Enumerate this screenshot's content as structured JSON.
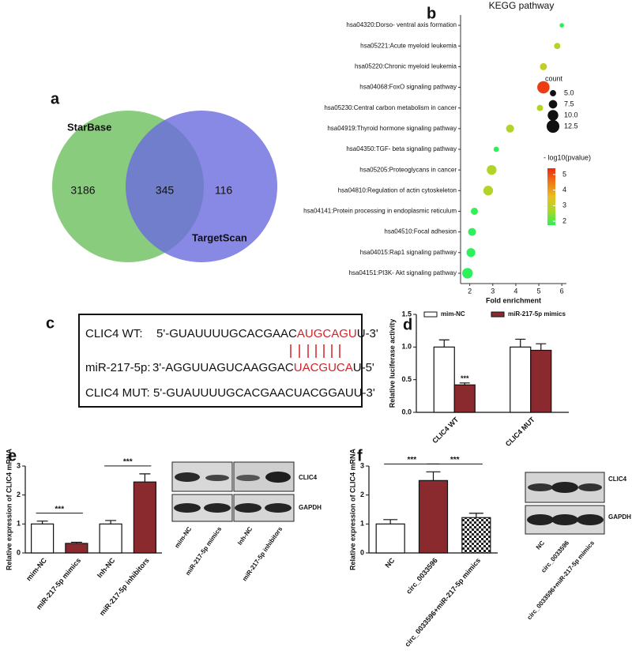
{
  "panel_labels": [
    "a",
    "b",
    "c",
    "d",
    "e",
    "f"
  ],
  "chart_data": [
    {
      "type": "venn",
      "sets": [
        {
          "name": "StarBase",
          "color": "#6dbf5e"
        },
        {
          "name": "TargetScan",
          "color": "#6a6ade"
        }
      ],
      "values": [
        3186,
        345,
        116
      ]
    },
    {
      "type": "bubble",
      "title": "KEGG pathway",
      "x_label": "Fold enrichment",
      "categories": [
        "hsa04320:Dorso- ventral axis formation",
        "hsa05221:Acute myeloid leukemia",
        "hsa05220:Chronic myeloid leukemia",
        "hsa04068:FoxO signaling pathway",
        "hsa05230:Central carbon metabolism in cancer",
        "hsa04919:Thyroid hormone signaling pathway",
        "hsa04350:TGF- beta signaling pathway",
        "hsa05205:Proteoglycans in cancer",
        "hsa04810:Regulation of actin cytoskeleton",
        "hsa04141:Protein processing in endoplasmic reticulum",
        "hsa04510:Focal adhesion",
        "hsa04015:Rap1 signaling pathway",
        "hsa04151:PI3K- Akt signaling pathway"
      ],
      "values": [
        6.0,
        5.8,
        5.2,
        5.2,
        5.05,
        3.75,
        3.15,
        2.95,
        2.8,
        2.2,
        2.1,
        2.05,
        1.9
      ],
      "count": [
        3,
        5,
        6,
        12,
        5,
        7,
        4,
        9,
        9,
        6,
        7,
        8,
        10
      ],
      "neg_log10_pvalue": [
        1.5,
        2.8,
        3.0,
        5.2,
        2.8,
        2.8,
        1.6,
        2.8,
        2.8,
        1.8,
        1.5,
        1.6,
        1.4
      ],
      "xlim": [
        1.6,
        6.2
      ],
      "xticks": [
        2,
        3,
        4,
        5,
        6
      ],
      "size_legend": {
        "title": "count",
        "ticks": [
          {
            "value": 5,
            "label": "5.0"
          },
          {
            "value": 7.5,
            "label": "7.5"
          },
          {
            "value": 10,
            "label": "10.0"
          },
          {
            "value": 12.5,
            "label": "12.5"
          }
        ]
      },
      "color_legend": {
        "title": "- log10(pvalue)",
        "range": [
          1.75,
          5.4
        ],
        "ticks": [
          2,
          3,
          4,
          5
        ],
        "colors": [
          "#2ef05a",
          "#a8d82a",
          "#e8c020",
          "#f07a18",
          "#ee2a10"
        ]
      }
    },
    {
      "type": "bar",
      "y_label": "Relative luciferase activity",
      "categories": [
        "CLIC4 WT",
        "CLIC4 MUT"
      ],
      "series": [
        {
          "name": "mim-NC",
          "color": "#ffffff",
          "values": [
            1.0,
            1.0
          ],
          "errors": [
            0.11,
            0.12
          ]
        },
        {
          "name": "miR-217-5p mimics",
          "color": "#8b2a2e",
          "values": [
            0.42,
            0.95
          ],
          "errors": [
            0.03,
            0.1
          ]
        }
      ],
      "ylim": [
        0,
        1.5
      ],
      "yticks": [
        {
          "value": 0,
          "label": "0.0"
        },
        {
          "value": 0.5,
          "label": "0.5"
        },
        {
          "value": 1,
          "label": "1.0"
        },
        {
          "value": 1.5,
          "label": "1.5"
        }
      ],
      "annotations": [
        {
          "text": "***",
          "category": 0,
          "series": 1
        }
      ]
    },
    {
      "type": "bar",
      "y_label": "Relative expression of CLIC4 mRNA",
      "categories": [
        "mim-NC",
        "miR-217-5p mimics",
        "Inh-NC",
        "miR-217-5p inhibitors"
      ],
      "values": [
        1.0,
        0.33,
        1.0,
        2.45
      ],
      "errors": [
        0.1,
        0.04,
        0.12,
        0.28
      ],
      "colors": [
        "#ffffff",
        "#8b2a2e",
        "#ffffff",
        "#8b2a2e"
      ],
      "ylim": [
        0,
        3
      ],
      "yticks": [
        0,
        1,
        2,
        3
      ],
      "annotations": [
        {
          "text": "***",
          "between": [
            0,
            1
          ]
        },
        {
          "text": "***",
          "between": [
            2,
            3
          ]
        }
      ]
    },
    {
      "type": "bar",
      "y_label": "Relative expression of CLIC4 mRNA",
      "categories": [
        "NC",
        "circ_0033596",
        "circ_0033596+miR-217-5p mimics"
      ],
      "values": [
        1.0,
        2.5,
        1.22
      ],
      "errors": [
        0.15,
        0.3,
        0.15
      ],
      "colors": [
        "#ffffff",
        "#8b2a2e",
        "checkered"
      ],
      "ylim": [
        0,
        3
      ],
      "yticks": [
        0,
        1,
        2,
        3
      ],
      "annotations": [
        {
          "text": "***",
          "between": [
            0,
            1
          ]
        },
        {
          "text": "***",
          "between": [
            1,
            2
          ]
        }
      ]
    }
  ],
  "sequence": {
    "rows": [
      {
        "label": "CLIC4 WT:",
        "parts": [
          "5'-GUAUUUUGCACGAAC",
          "AUGCAGU",
          "U-3'"
        ]
      },
      {
        "label": "miR-217-5p:",
        "parts": [
          "3'-AGGUUAGUCAAGGAC",
          "UACGUCA",
          "U-5'"
        ]
      },
      {
        "label": "CLIC4 MUT:",
        "parts": [
          "5'-GUAUUUUGCACGAACUACGGAUU-3'"
        ]
      }
    ]
  },
  "blots": {
    "e": {
      "rows": [
        "CLIC4",
        "GAPDH"
      ],
      "lanes": [
        "mim-NC",
        "miR-217-5p mimics",
        "Inh-NC",
        "miR-217-5p inhibitors"
      ]
    },
    "f": {
      "rows": [
        "CLIC4",
        "GAPDH"
      ],
      "lanes": [
        "NC",
        "circ_0033596",
        "circ_0033596+miR-217-5p mimics"
      ]
    }
  }
}
